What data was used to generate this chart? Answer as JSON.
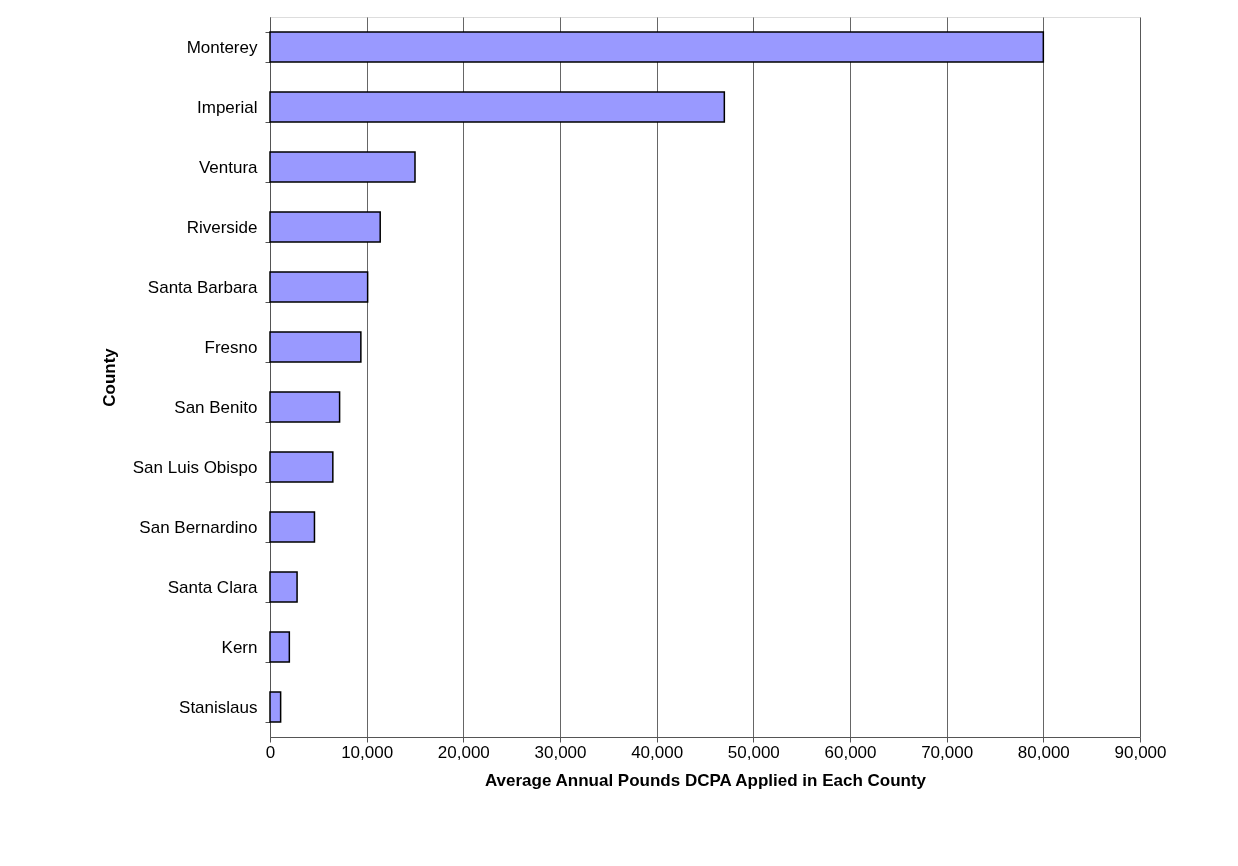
{
  "chart_data": {
    "type": "bar",
    "orientation": "horizontal",
    "xlabel": "Average Annual Pounds DCPA Applied in Each County",
    "ylabel": "County",
    "categories": [
      "Monterey",
      "Imperial",
      "Ventura",
      "Riverside",
      "Santa Barbara",
      "Fresno",
      "San Benito",
      "San Luis Obispo",
      "San Bernardino",
      "Santa Clara",
      "Kern",
      "Stanislaus"
    ],
    "values": [
      80000,
      47000,
      15000,
      11400,
      10100,
      9400,
      7200,
      6500,
      4600,
      2800,
      2000,
      1100
    ],
    "color": "#9999ff",
    "xlim": [
      0,
      90000
    ],
    "xticks": [
      0,
      {
        "value": 10000,
        "label": "10,000"
      },
      {
        "value": 20000,
        "label": "20,000"
      },
      {
        "value": 30000,
        "label": "30,000"
      },
      {
        "value": 40000,
        "label": "40,000"
      },
      {
        "value": 50000,
        "label": "50,000"
      },
      {
        "value": 60000,
        "label": "60,000"
      },
      {
        "value": 70000,
        "label": "70,000"
      },
      {
        "value": 80000,
        "label": "80,000"
      },
      {
        "value": 90000,
        "label": "90,000"
      }
    ],
    "grid": "x"
  }
}
